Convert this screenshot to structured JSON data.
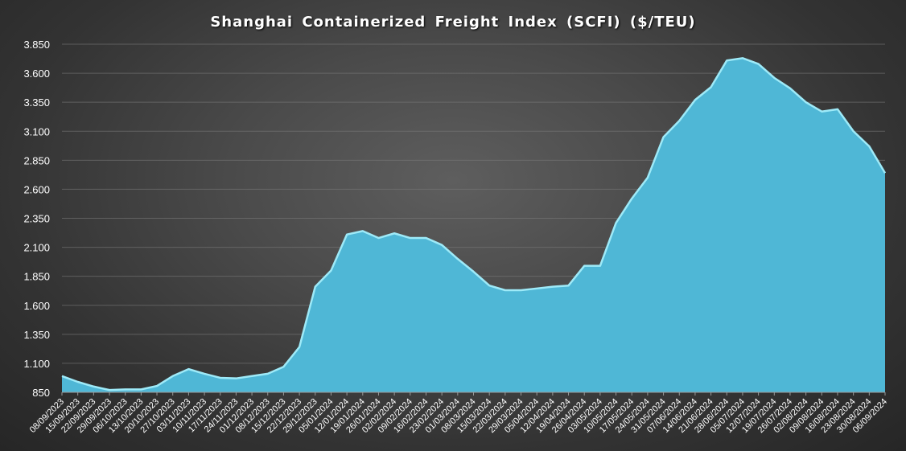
{
  "chart_data": {
    "type": "area",
    "title": "Shanghai Containerized Freight Index (SCFI) ($/TEU)",
    "xlabel": "",
    "ylabel": "",
    "ylim": [
      850,
      3850
    ],
    "yticks": [
      850,
      1100,
      1350,
      1600,
      1850,
      2100,
      2350,
      2600,
      2850,
      3100,
      3350,
      3600,
      3850
    ],
    "ytick_labels": [
      "850",
      "1.100",
      "1.350",
      "1.600",
      "1.850",
      "2.100",
      "2.350",
      "2.600",
      "2.850",
      "3.100",
      "3.350",
      "3.600",
      "3.850"
    ],
    "grid": true,
    "fill_color": "#4fb7d6",
    "line_color": "#9eeaf8",
    "categories": [
      "08/09/2023",
      "15/09/2023",
      "22/09/2023",
      "29/09/2023",
      "06/10/2023",
      "13/10/2023",
      "20/10/2023",
      "27/10/2023",
      "03/11/2023",
      "10/11/2023",
      "17/11/2023",
      "24/11/2023",
      "01/12/2023",
      "08/12/2023",
      "15/12/2023",
      "22/12/2023",
      "29/12/2023",
      "05/01/2024",
      "12/01/2024",
      "19/01/2024",
      "26/01/2024",
      "02/02/2024",
      "09/02/2024",
      "16/02/2024",
      "23/02/2024",
      "01/03/2024",
      "08/03/2024",
      "15/03/2024",
      "22/03/2024",
      "29/03/2024",
      "05/04/2024",
      "12/04/2024",
      "19/04/2024",
      "26/04/2024",
      "03/05/2024",
      "10/05/2024",
      "17/05/2024",
      "24/05/2024",
      "31/05/2024",
      "07/06/2024",
      "14/06/2024",
      "21/06/2024",
      "28/06/2024",
      "05/07/2024",
      "12/07/2024",
      "19/07/2024",
      "26/07/2024",
      "02/08/2024",
      "09/08/2024",
      "16/08/2024",
      "23/08/2024",
      "30/08/2024",
      "06/09/2024"
    ],
    "values": [
      990,
      940,
      900,
      870,
      875,
      875,
      905,
      990,
      1050,
      1010,
      975,
      970,
      990,
      1010,
      1070,
      1240,
      1760,
      1900,
      2210,
      2240,
      2180,
      2220,
      2180,
      2180,
      2120,
      2000,
      1890,
      1770,
      1730,
      1730,
      1745,
      1760,
      1770,
      1940,
      1940,
      2310,
      2520,
      2700,
      3050,
      3190,
      3370,
      3480,
      3710,
      3730,
      3680,
      3560,
      3470,
      3350,
      3270,
      3290,
      3100,
      2970,
      2740
    ]
  }
}
